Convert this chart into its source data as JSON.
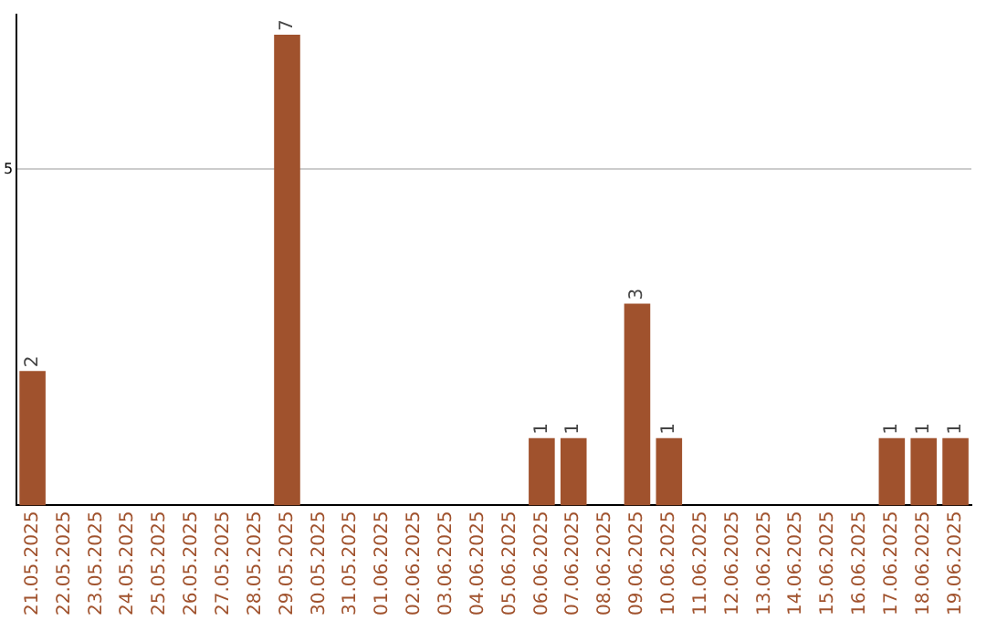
{
  "chart_data": {
    "type": "bar",
    "categories": [
      "21.05.2025",
      "22.05.2025",
      "23.05.2025",
      "24.05.2025",
      "25.05.2025",
      "26.05.2025",
      "27.05.2025",
      "28.05.2025",
      "29.05.2025",
      "30.05.2025",
      "31.05.2025",
      "01.06.2025",
      "02.06.2025",
      "03.06.2025",
      "04.06.2025",
      "05.06.2025",
      "06.06.2025",
      "07.06.2025",
      "08.06.2025",
      "09.06.2025",
      "10.06.2025",
      "11.06.2025",
      "12.06.2025",
      "13.06.2025",
      "14.06.2025",
      "15.06.2025",
      "16.06.2025",
      "17.06.2025",
      "18.06.2025",
      "19.06.2025"
    ],
    "values": [
      2,
      0,
      0,
      0,
      0,
      0,
      0,
      0,
      7,
      0,
      0,
      0,
      0,
      0,
      0,
      0,
      1,
      1,
      0,
      3,
      1,
      0,
      0,
      0,
      0,
      0,
      0,
      1,
      1,
      1
    ],
    "value_labels": [
      "2",
      null,
      null,
      null,
      null,
      null,
      null,
      null,
      "7",
      null,
      null,
      null,
      null,
      null,
      null,
      null,
      "1",
      "1",
      null,
      "3",
      "1",
      null,
      null,
      null,
      null,
      null,
      null,
      "1",
      "1",
      "1"
    ],
    "color": "#a0522d",
    "ylim": [
      0,
      7.3
    ],
    "yticks": [
      5
    ],
    "grid": "y",
    "legend": false
  }
}
